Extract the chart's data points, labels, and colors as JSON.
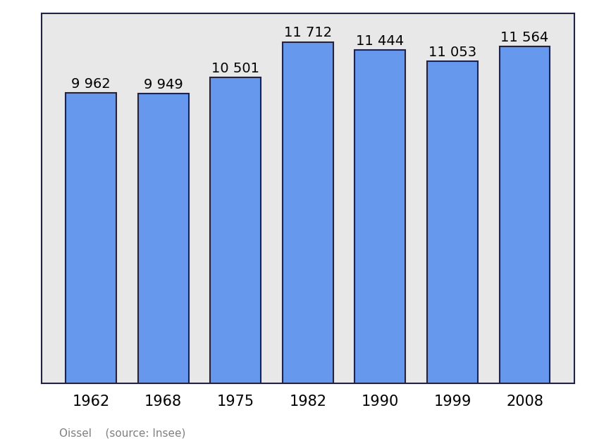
{
  "years": [
    "1962",
    "1968",
    "1975",
    "1982",
    "1990",
    "1999",
    "2008"
  ],
  "values": [
    9962,
    9949,
    10501,
    11712,
    11444,
    11053,
    11564
  ],
  "labels": [
    "9 962",
    "9 949",
    "10 501",
    "11 712",
    "11 444",
    "11 053",
    "11 564"
  ],
  "bar_color": "#6699ee",
  "bar_edge_color": "#222244",
  "background_color": "#e8e8e8",
  "outer_bg": "none",
  "ylim": [
    0,
    12700
  ],
  "source_text": "Oissel    (source: Insee)",
  "label_fontsize": 14,
  "tick_fontsize": 15,
  "source_fontsize": 11,
  "bar_width": 0.7
}
